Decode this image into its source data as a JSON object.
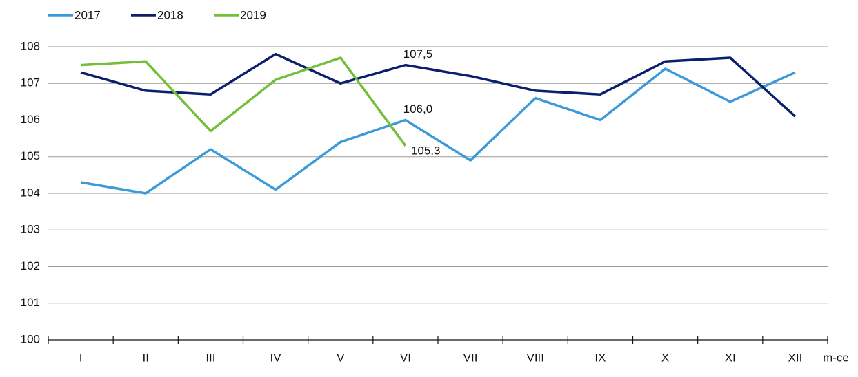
{
  "chart_data": {
    "type": "line",
    "categories": [
      "I",
      "II",
      "III",
      "IV",
      "V",
      "VI",
      "VII",
      "VIII",
      "IX",
      "X",
      "XI",
      "XII"
    ],
    "x_label": "m-ce",
    "series": [
      {
        "name": "2017",
        "color": "#3d9ad9",
        "values": [
          104.3,
          104.0,
          105.2,
          104.1,
          105.4,
          106.0,
          104.9,
          106.6,
          106.0,
          107.4,
          106.5,
          107.3
        ],
        "value_labels": [
          null,
          null,
          null,
          null,
          null,
          "106,0",
          null,
          null,
          null,
          null,
          null,
          null
        ]
      },
      {
        "name": "2018",
        "color": "#0b1f6e",
        "values": [
          107.3,
          106.8,
          106.7,
          107.8,
          107.0,
          107.5,
          107.2,
          106.8,
          106.7,
          107.6,
          107.7,
          106.1
        ],
        "value_labels": [
          null,
          null,
          null,
          null,
          null,
          "107,5",
          null,
          null,
          null,
          null,
          null,
          null
        ]
      },
      {
        "name": "2019",
        "color": "#74bf3a",
        "values": [
          107.5,
          107.6,
          105.7,
          107.1,
          107.7,
          105.3,
          null,
          null,
          null,
          null,
          null,
          null
        ],
        "value_labels": [
          null,
          null,
          null,
          null,
          null,
          "105,3",
          null,
          null,
          null,
          null,
          null,
          null
        ]
      }
    ],
    "ylim": [
      100,
      108
    ],
    "yticks": [
      100,
      101,
      102,
      103,
      104,
      105,
      106,
      107,
      108
    ],
    "grid": true
  }
}
